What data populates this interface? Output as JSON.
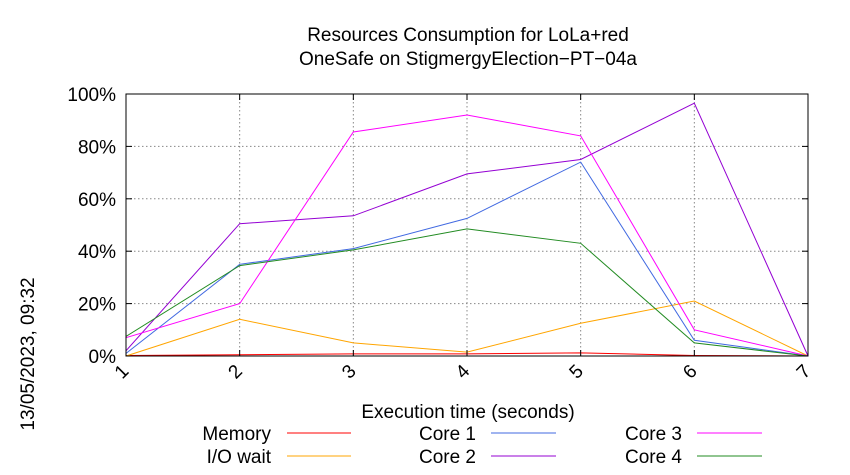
{
  "chart_data": {
    "type": "line",
    "title_lines": [
      "Resources Consumption for LoLa+red",
      "OneSafe on StigmergyElection−PT−04a"
    ],
    "xlabel": "Execution time (seconds)",
    "ylabel": "",
    "side_label": "13/05/2023, 09:32",
    "x_ticks": [
      1,
      2,
      3,
      4,
      5,
      6,
      7
    ],
    "y_ticks": [
      "0%",
      "20%",
      "40%",
      "60%",
      "80%",
      "100%"
    ],
    "xlim": [
      1,
      7
    ],
    "ylim": [
      0,
      100
    ],
    "grid": true,
    "legend_position": "bottom",
    "x": [
      1,
      2,
      3,
      4,
      5,
      6,
      7
    ],
    "series": [
      {
        "name": "Memory",
        "color": "#ff0000",
        "values": [
          0.2,
          0.5,
          0.8,
          0.8,
          1.2,
          0.2,
          0
        ]
      },
      {
        "name": "I/O wait",
        "color": "#ffa500",
        "values": [
          0,
          14,
          5,
          1.5,
          12.5,
          21,
          0
        ]
      },
      {
        "name": "Core 1",
        "color": "#4169e1",
        "values": [
          1,
          35,
          41,
          52.5,
          74,
          6,
          0
        ]
      },
      {
        "name": "Core 2",
        "color": "#9400d3",
        "values": [
          2,
          50.5,
          53.5,
          69.5,
          75,
          96.5,
          0
        ]
      },
      {
        "name": "Core 3",
        "color": "#ff00ff",
        "values": [
          7,
          20,
          85.5,
          92,
          84,
          10,
          0
        ]
      },
      {
        "name": "Core 4",
        "color": "#228b22",
        "values": [
          7.5,
          34.5,
          40.5,
          48.5,
          43,
          5,
          0
        ]
      }
    ]
  }
}
